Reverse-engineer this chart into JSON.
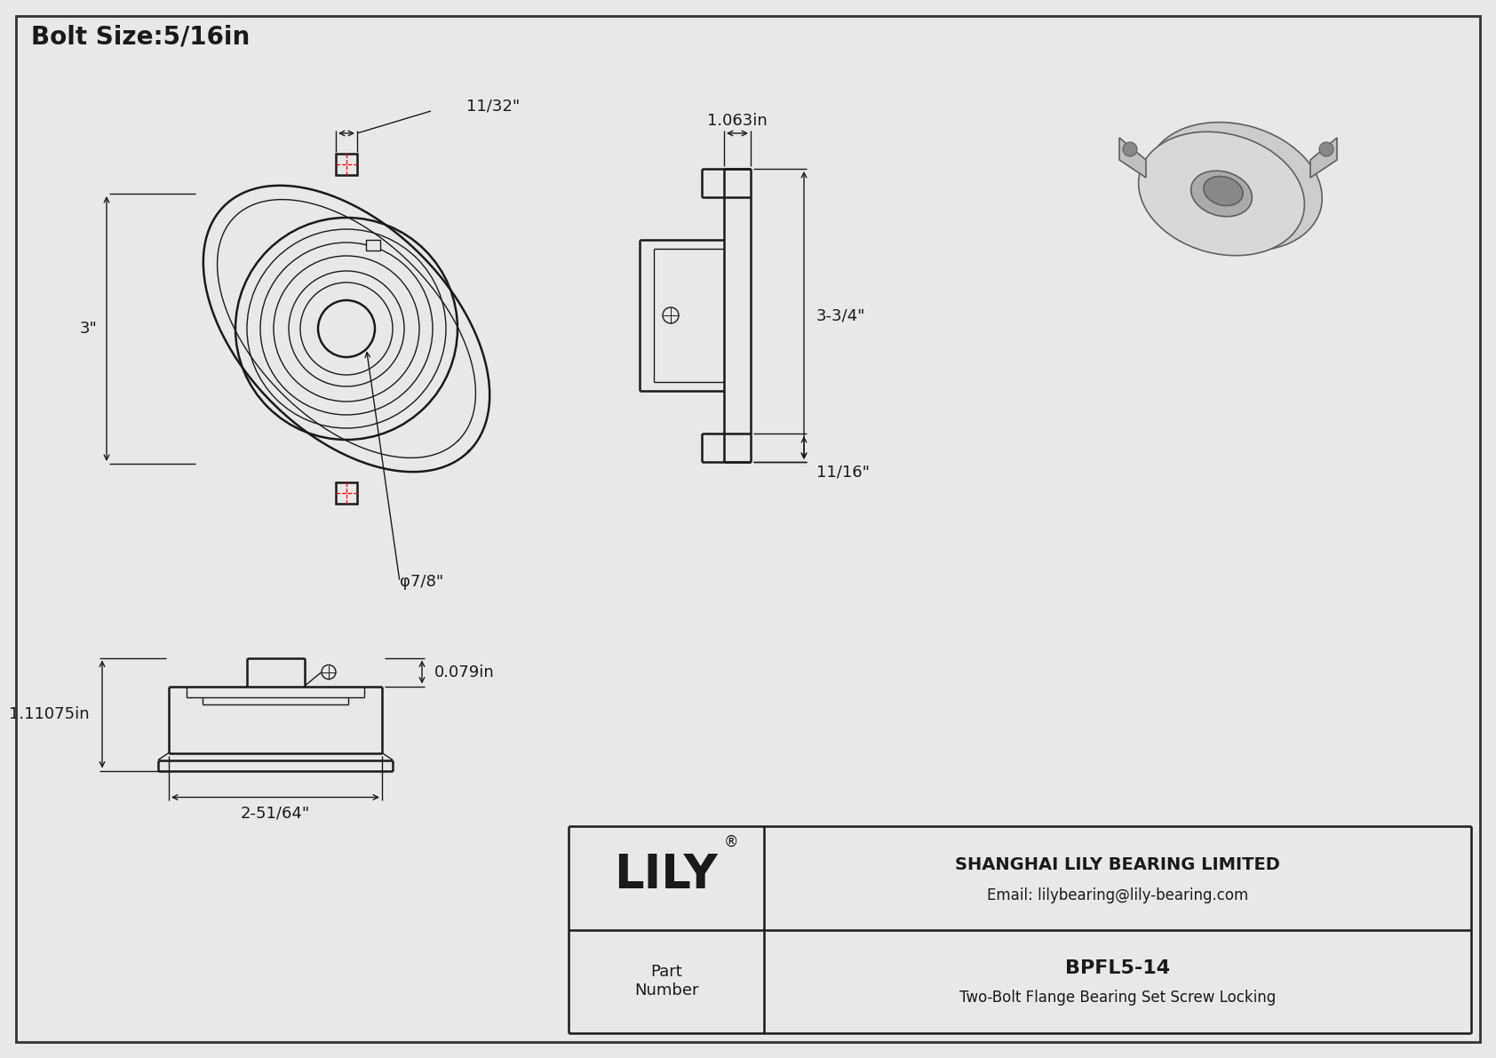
{
  "title": "Bolt Size:5/16in",
  "background_color": "#e8e8e8",
  "line_color": "#1a1a1a",
  "dim_color": "#1a1a1a",
  "red_dash_color": "#ff0000",
  "company_name": "SHANGHAI LILY BEARING LIMITED",
  "company_email": "Email: lilybearing@lily-bearing.com",
  "part_number": "BPFL5-14",
  "part_description": "Two-Bolt Flange Bearing Set Screw Locking",
  "lily_text": "LILY",
  "dim_11_32": "11/32\"",
  "dim_3": "3\"",
  "dim_7_8": "φ7/8\"",
  "dim_1_063": "1.063in",
  "dim_3_3_4": "3-3/4\"",
  "dim_11_16": "11/16\"",
  "dim_0_079": "0.079in",
  "dim_1_11075": "1.11075in",
  "dim_2_51_64": "2-51/64\""
}
